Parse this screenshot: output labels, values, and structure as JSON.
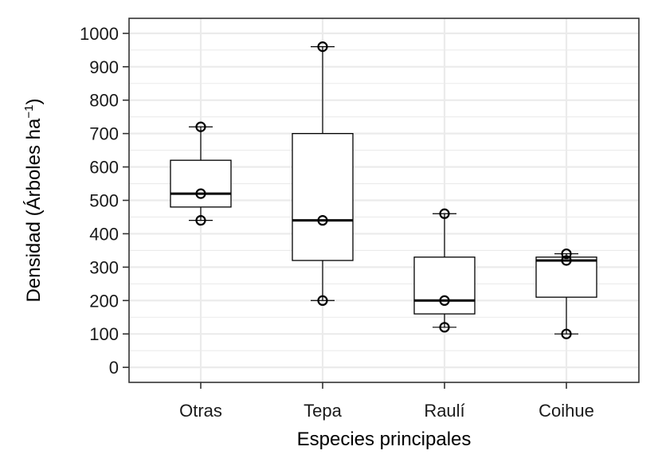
{
  "chart_data": {
    "type": "boxplot",
    "title": "",
    "xlabel": "Especies principales",
    "ylabel": {
      "main": "Densidad (Árboles ha",
      "superscript": "−1",
      "close": ")"
    },
    "ylim": [
      -45,
      1045
    ],
    "yticks": [
      0,
      100,
      200,
      300,
      400,
      500,
      600,
      700,
      800,
      900,
      1000
    ],
    "grid": true,
    "categories": [
      "Otras",
      "Tepa",
      "Raulí",
      "Coihue"
    ],
    "boxes": [
      {
        "category": "Otras",
        "whisker_low": 440,
        "q1": 480,
        "median": 520,
        "q3": 620,
        "whisker_high": 720,
        "points": [
          440,
          520,
          720
        ]
      },
      {
        "category": "Tepa",
        "whisker_low": 200,
        "q1": 320,
        "median": 440,
        "q3": 700,
        "whisker_high": 960,
        "points": [
          200,
          440,
          960
        ]
      },
      {
        "category": "Raulí",
        "whisker_low": 120,
        "q1": 160,
        "median": 200,
        "q3": 330,
        "whisker_high": 460,
        "points": [
          120,
          200,
          460
        ]
      },
      {
        "category": "Coihue",
        "whisker_low": 100,
        "q1": 210,
        "median": 320,
        "q3": 330,
        "whisker_high": 340,
        "points": [
          100,
          320,
          340
        ]
      }
    ],
    "colors": {
      "panel_border": "#333333",
      "grid": "#ebebeb",
      "box_fill": "#ffffff",
      "box_stroke": "#000000",
      "text": "#1a1a1a"
    }
  }
}
